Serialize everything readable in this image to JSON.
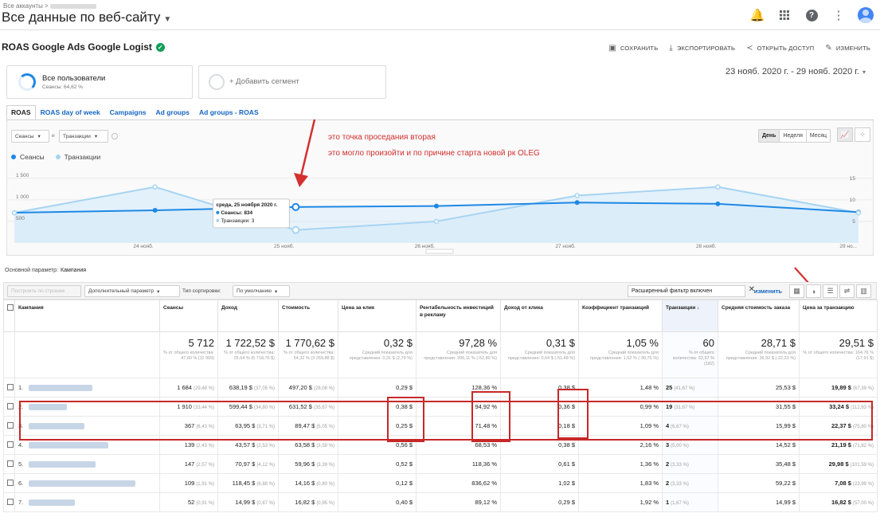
{
  "header": {
    "breadcrumb": "Все аккаунты >",
    "account_title": "Все данные по веб-сайту",
    "icons": [
      "bell-icon",
      "apps-grid-icon",
      "help-icon",
      "more-vert-icon",
      "avatar-icon"
    ]
  },
  "report": {
    "title": "ROAS Google Ads Google Logist",
    "actions": [
      {
        "label": "СОХРАНИТЬ",
        "icon": "save-icon"
      },
      {
        "label": "ЭКСПОРТИРОВАТЬ",
        "icon": "export-icon"
      },
      {
        "label": "ОТКРЫТЬ ДОСТУП",
        "icon": "share-icon"
      },
      {
        "label": "ИЗМЕНИТЬ",
        "icon": "edit-icon"
      }
    ]
  },
  "segments": {
    "active": {
      "name": "Все пользователи",
      "sub": "Сеансы: 64,62 %"
    },
    "add_label": "+ Добавить сегмент"
  },
  "date_range": "23 нояб. 2020 г. - 29 нояб. 2020 г.",
  "tabs": [
    "ROAS",
    "ROAS day of week",
    "Campaigns",
    "Ad groups",
    "Ad groups - ROAS"
  ],
  "chart_controls": {
    "metric1": "Сеансы",
    "vs": "и",
    "metric2": "Транзакции",
    "periods": [
      "День",
      "Неделя",
      "Месяц"
    ]
  },
  "legend": [
    {
      "name": "Сеансы",
      "color": "#1e88e5"
    },
    {
      "name": "Транзакции",
      "color": "#a6d4f2"
    }
  ],
  "chart_data": {
    "type": "line",
    "x": [
      "23 нояб.",
      "24 нояб.",
      "25 нояб.",
      "26 нояб.",
      "27 нояб.",
      "28 нояб.",
      "29 нояб."
    ],
    "x_ticks": [
      "24 нояб.",
      "25 нояб.",
      "26 нояб.",
      "27 нояб.",
      "28 нояб.",
      "29 но..."
    ],
    "series": [
      {
        "name": "Сеансы",
        "axis": "left",
        "values": [
          702,
          757,
          834,
          857,
          937,
          908,
          716
        ]
      },
      {
        "name": "Транзакции",
        "axis": "right",
        "values": [
          7,
          13,
          3,
          5,
          11,
          13,
          7
        ]
      }
    ],
    "left_ticks": [
      "1 500",
      "1 000",
      "500"
    ],
    "left_ylim": [
      0,
      1700
    ],
    "right_ticks": [
      "15",
      "10",
      "5"
    ],
    "right_ylim": [
      0,
      17
    ],
    "tooltip": {
      "date": "среда, 25 ноября 2020 г.",
      "line1": "Сеансы: 834",
      "line2": "Транзакции: 3"
    }
  },
  "annotation": {
    "line1": "это точка проседания вторая",
    "line2": "это могло произойти и по причине старта новой рк OLEG",
    "color": "#d32f2f"
  },
  "primary_dimension": {
    "label": "Основной параметр:",
    "value": "Кампания"
  },
  "table_toolbar": {
    "plot_rows": "Построить по строкам",
    "secondary_dim": "Дополнительный параметр",
    "sort_label": "Тип сортировки:",
    "sort_value": "По умолчанию",
    "filter_text": "Расширенный фильтр включен",
    "edit": "изменить"
  },
  "columns": [
    "Кампания",
    "Сеансы",
    "Доход",
    "Стоимость",
    "Цена за клик",
    "Рентабельность инвестиций в рекламу",
    "Доход от клика",
    "Коэффициент транзакций",
    "Транзакции",
    "Средняя стоимость заказа",
    "Цена за транзакцию"
  ],
  "totals": [
    {
      "v": "5 712",
      "s": "% от общего количества: 47,60 % (11 999)"
    },
    {
      "v": "1 722,52 $",
      "s": "% от общего количества: 25,64 % (6 718,79 $)"
    },
    {
      "v": "1 770,62 $",
      "s": "% от общего количества: 54,32 % (3 259,88 $)"
    },
    {
      "v": "0,32 $",
      "s": "Средний показатель для представления: 0,31 $ (2,79 %)"
    },
    {
      "v": "97,28 %",
      "s": "Средний показатель для представления: 206,11 % (-52,80 %)"
    },
    {
      "v": "0,31 $",
      "s": "Средний показатель для представления: 0,64 $ (-51,48 %)"
    },
    {
      "v": "1,05 %",
      "s": "Средний показатель для представления: 1,52 % (-30,75 %)"
    },
    {
      "v": "60",
      "s": "% от общего количества: 32,97 % (182)"
    },
    {
      "v": "28,71 $",
      "s": "Средний показатель для представления: 36,92 $ (-22,23 %)"
    },
    {
      "v": "29,51 $",
      "s": "% от общего количества: 164,76 % (17,91 $)"
    }
  ],
  "rows": [
    {
      "idx": "1.",
      "sessions": "1 684",
      "sessions_pct": "(29,48 %)",
      "revenue": "638,19 $",
      "revenue_pct": "(37,05 %)",
      "cost": "497,20 $",
      "cost_pct": "(28,08 %)",
      "cpc": "0,29 $",
      "roas": "128,36 %",
      "rpc": "0,38 $",
      "conv": "1,48 %",
      "tx": "25",
      "tx_pct": "(41,67 %)",
      "aov": "25,53 $",
      "cpt": "19,89 $",
      "cpt_pct": "(67,39 %)"
    },
    {
      "idx": "2.",
      "sessions": "1 910",
      "sessions_pct": "(33,44 %)",
      "revenue": "599,44 $",
      "revenue_pct": "(34,80 %)",
      "cost": "631,52 $",
      "cost_pct": "(35,67 %)",
      "cpc": "0,38 $",
      "roas": "94,92 %",
      "rpc": "0,36 $",
      "conv": "0,99 %",
      "tx": "19",
      "tx_pct": "(31,67 %)",
      "aov": "31,55 $",
      "cpt": "33,24 $",
      "cpt_pct": "(112,63 %)"
    },
    {
      "idx": "3.",
      "sessions": "367",
      "sessions_pct": "(6,43 %)",
      "revenue": "63,95 $",
      "revenue_pct": "(3,71 %)",
      "cost": "89,47 $",
      "cost_pct": "(5,05 %)",
      "cpc": "0,25 $",
      "roas": "71,48 %",
      "rpc": "0,18 $",
      "conv": "1,09 %",
      "tx": "4",
      "tx_pct": "(6,67 %)",
      "aov": "15,99 $",
      "cpt": "22,37 $",
      "cpt_pct": "(75,80 %)"
    },
    {
      "idx": "4.",
      "sessions": "139",
      "sessions_pct": "(2,43 %)",
      "revenue": "43,57 $",
      "revenue_pct": "(2,53 %)",
      "cost": "63,58 $",
      "cost_pct": "(3,59 %)",
      "cpc": "0,56 $",
      "roas": "68,53 %",
      "rpc": "0,38 $",
      "conv": "2,16 %",
      "tx": "3",
      "tx_pct": "(5,00 %)",
      "aov": "14,52 $",
      "cpt": "21,19 $",
      "cpt_pct": "(71,82 %)"
    },
    {
      "idx": "5.",
      "sessions": "147",
      "sessions_pct": "(2,57 %)",
      "revenue": "70,97 $",
      "revenue_pct": "(4,12 %)",
      "cost": "59,96 $",
      "cost_pct": "(3,39 %)",
      "cpc": "0,52 $",
      "roas": "118,36 %",
      "rpc": "0,61 $",
      "conv": "1,36 %",
      "tx": "2",
      "tx_pct": "(3,33 %)",
      "aov": "35,48 $",
      "cpt": "29,98 $",
      "cpt_pct": "(101,59 %)"
    },
    {
      "idx": "6.",
      "sessions": "109",
      "sessions_pct": "(1,91 %)",
      "revenue": "118,45 $",
      "revenue_pct": "(6,88 %)",
      "cost": "14,16 $",
      "cost_pct": "(0,80 %)",
      "cpc": "0,12 $",
      "roas": "836,62 %",
      "rpc": "1,02 $",
      "conv": "1,83 %",
      "tx": "2",
      "tx_pct": "(3,33 %)",
      "aov": "59,22 $",
      "cpt": "7,08 $",
      "cpt_pct": "(23,99 %)"
    },
    {
      "idx": "7.",
      "sessions": "52",
      "sessions_pct": "(0,91 %)",
      "revenue": "14,99 $",
      "revenue_pct": "(0,87 %)",
      "cost": "16,82 $",
      "cost_pct": "(0,95 %)",
      "cpc": "0,40 $",
      "roas": "89,12 %",
      "rpc": "0,29 $",
      "conv": "1,92 %",
      "tx": "1",
      "tx_pct": "(1,67 %)",
      "aov": "14,99 $",
      "cpt": "16,82 $",
      "cpt_pct": "(57,00 %)"
    }
  ]
}
